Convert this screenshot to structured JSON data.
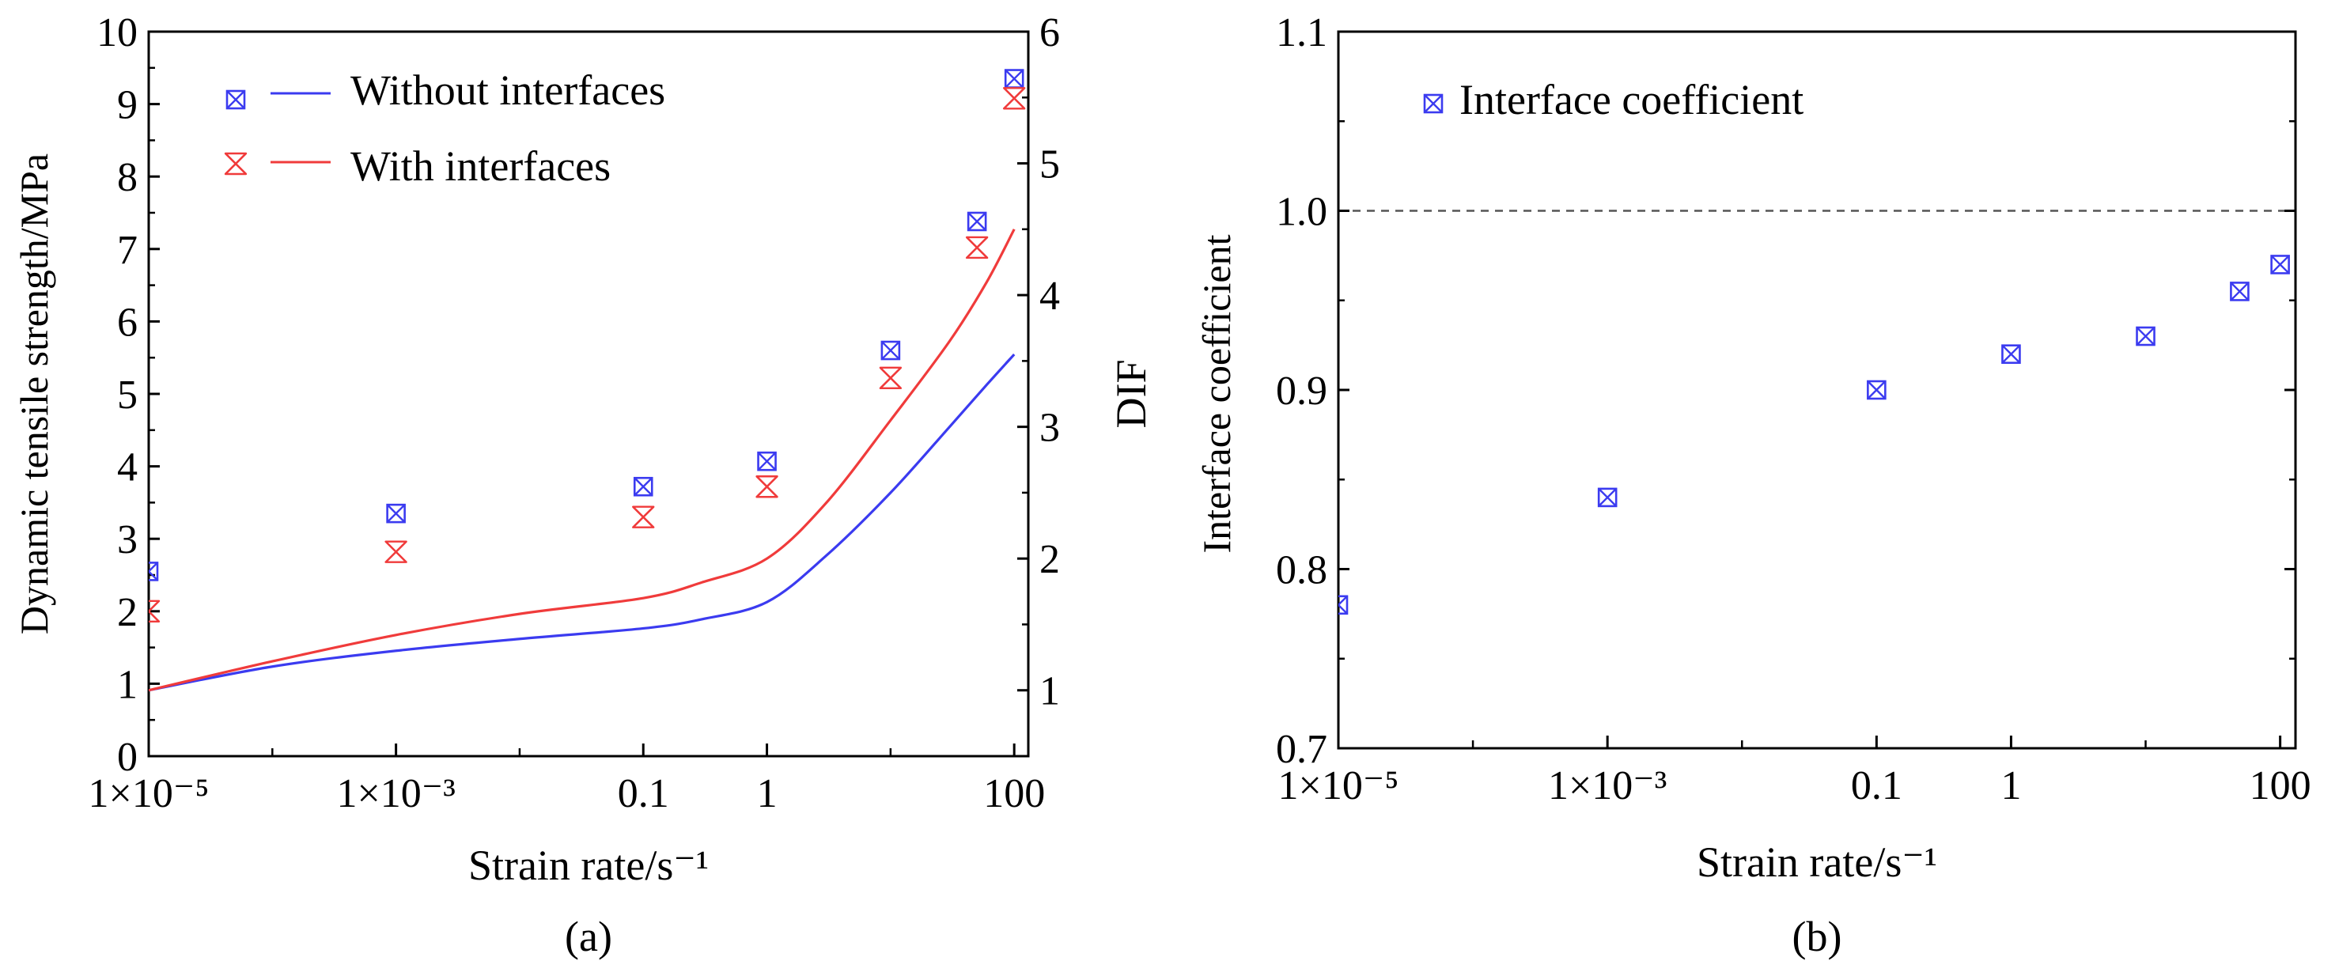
{
  "colors": {
    "without": "#3b3bf0",
    "with": "#f03b3b",
    "axis": "#000000",
    "reference": "#555555"
  },
  "chart_data": [
    {
      "type": "scatter+line",
      "panel_label": "(a)",
      "title": "",
      "xscale": "log",
      "xlabel": "Strain rate/s⁻¹",
      "xlim": [
        1e-05,
        130
      ],
      "xticks": [
        {
          "value": 1e-05,
          "label": "1×10⁻⁵"
        },
        {
          "value": 0.001,
          "label": "1×10⁻³"
        },
        {
          "value": 0.1,
          "label": "0.1"
        },
        {
          "value": 1,
          "label": "1"
        },
        {
          "value": 100,
          "label": "100"
        }
      ],
      "ylabel": "Dynamic tensile strength/MPa",
      "ylim": [
        0,
        10
      ],
      "yticks": [
        "0",
        "1",
        "2",
        "3",
        "4",
        "5",
        "6",
        "7",
        "8",
        "9",
        "10"
      ],
      "y2label": "DIF",
      "y2lim": [
        0.5,
        6
      ],
      "y2ticks": [
        "1",
        "2",
        "3",
        "4",
        "5",
        "6"
      ],
      "legend_position": "top-left",
      "legend": [
        "Without interfaces",
        "With interfaces"
      ],
      "series": [
        {
          "name": "Without interfaces",
          "marker": "square-x",
          "color": "without",
          "points": [
            [
              1e-05,
              2.55
            ],
            [
              0.001,
              3.35
            ],
            [
              0.1,
              3.72
            ],
            [
              1,
              4.07
            ],
            [
              10,
              5.6
            ],
            [
              50,
              7.38
            ],
            [
              100,
              9.35
            ]
          ]
        },
        {
          "name": "With interfaces",
          "marker": "hourglass-x",
          "color": "with",
          "points": [
            [
              1e-05,
              2.0
            ],
            [
              0.001,
              2.82
            ],
            [
              0.1,
              3.3
            ],
            [
              1,
              3.72
            ],
            [
              10,
              5.22
            ],
            [
              50,
              7.02
            ],
            [
              100,
              9.08
            ]
          ]
        }
      ],
      "curves_dif": [
        {
          "name": "Without interfaces",
          "color": "without",
          "points": [
            [
              1e-05,
              1.0
            ],
            [
              0.0001,
              1.18
            ],
            [
              0.001,
              1.3
            ],
            [
              0.01,
              1.39
            ],
            [
              0.1,
              1.47
            ],
            [
              0.3,
              1.54
            ],
            [
              1,
              1.67
            ],
            [
              3,
              2.02
            ],
            [
              10,
              2.5
            ],
            [
              30,
              3.0
            ],
            [
              60,
              3.32
            ],
            [
              100,
              3.55
            ]
          ]
        },
        {
          "name": "With interfaces",
          "color": "with",
          "points": [
            [
              1e-05,
              1.0
            ],
            [
              0.0001,
              1.22
            ],
            [
              0.001,
              1.42
            ],
            [
              0.01,
              1.58
            ],
            [
              0.1,
              1.7
            ],
            [
              0.3,
              1.82
            ],
            [
              1,
              2.0
            ],
            [
              3,
              2.42
            ],
            [
              10,
              3.05
            ],
            [
              30,
              3.65
            ],
            [
              60,
              4.1
            ],
            [
              100,
              4.5
            ]
          ]
        }
      ]
    },
    {
      "type": "scatter",
      "panel_label": "(b)",
      "title": "",
      "xscale": "log",
      "xlabel": "Strain rate/s⁻¹",
      "xlim": [
        1e-05,
        130
      ],
      "xticks": [
        {
          "value": 1e-05,
          "label": "1×10⁻⁵"
        },
        {
          "value": 0.001,
          "label": "1×10⁻³"
        },
        {
          "value": 0.1,
          "label": "0.1"
        },
        {
          "value": 1,
          "label": "1"
        },
        {
          "value": 100,
          "label": "100"
        }
      ],
      "ylabel": "Interface coefficient",
      "ylim": [
        0.7,
        1.1
      ],
      "yticks": [
        "0.7",
        "0.8",
        "0.9",
        "1.0",
        "1.1"
      ],
      "reference_line": 1.0,
      "legend_position": "top-left",
      "legend": [
        "Interface coefficient"
      ],
      "series": [
        {
          "name": "Interface coefficient",
          "marker": "square-x",
          "color": "without",
          "points": [
            [
              1e-05,
              0.78
            ],
            [
              0.001,
              0.84
            ],
            [
              0.1,
              0.9
            ],
            [
              1,
              0.92
            ],
            [
              10,
              0.93
            ],
            [
              50,
              0.955
            ],
            [
              100,
              0.97
            ]
          ]
        }
      ]
    }
  ]
}
